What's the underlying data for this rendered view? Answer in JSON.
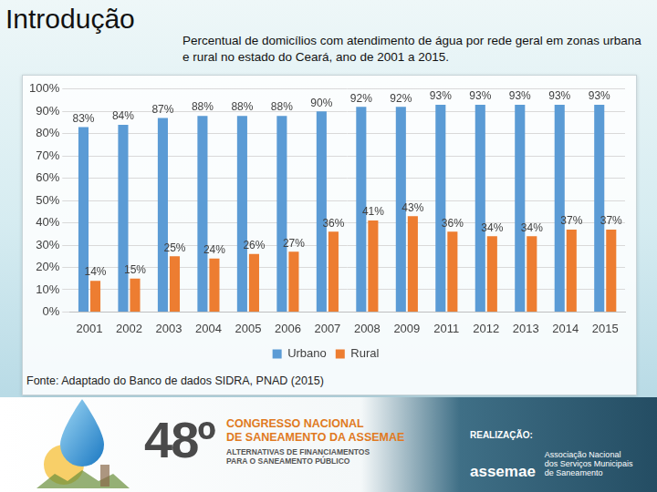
{
  "header": {
    "title": "Introdução"
  },
  "chart_data": {
    "type": "bar",
    "title": "Percentual de domicílios com atendimento de água por rede geral em zonas urbana e rural no estado do Ceará, ano de 2001 a 2015.",
    "source": "Fonte: Adaptado do Banco de dados SIDRA, PNAD (2015)",
    "categories": [
      "2001",
      "2002",
      "2003",
      "2004",
      "2005",
      "2006",
      "2007",
      "2008",
      "2009",
      "2011",
      "2012",
      "2013",
      "2014",
      "2015"
    ],
    "series": [
      {
        "name": "Urbano",
        "color": "#5b9bd5",
        "values": [
          83,
          84,
          87,
          88,
          88,
          88,
          90,
          92,
          92,
          93,
          93,
          93,
          93,
          93
        ],
        "value_labels": [
          "83%",
          "84%",
          "87%",
          "88%",
          "88%",
          "88%",
          "90%",
          "92%",
          "92%",
          "93%",
          "93%",
          "93%",
          "93%",
          "93%"
        ]
      },
      {
        "name": "Rural",
        "color": "#ed7d31",
        "values": [
          14,
          15,
          25,
          24,
          26,
          27,
          36,
          41,
          43,
          36,
          34,
          34,
          37,
          37
        ],
        "value_labels": [
          "14%",
          "15%",
          "25%",
          "24%",
          "26%",
          "27%",
          "36%",
          "41%",
          "43%",
          "36%",
          "34%",
          "34%",
          "37%",
          "37%"
        ]
      }
    ],
    "ylim": [
      0,
      100
    ],
    "yticks": [
      {
        "value": 0,
        "label": "0%"
      },
      {
        "value": 10,
        "label": "10%"
      },
      {
        "value": 20,
        "label": "20%"
      },
      {
        "value": 30,
        "label": "30%"
      },
      {
        "value": 40,
        "label": "40%"
      },
      {
        "value": 50,
        "label": "50%"
      },
      {
        "value": 60,
        "label": "60%"
      },
      {
        "value": 70,
        "label": "70%"
      },
      {
        "value": 80,
        "label": "80%"
      },
      {
        "value": 90,
        "label": "90%"
      },
      {
        "value": 100,
        "label": "100%"
      }
    ],
    "grid": true,
    "legend": "bottom",
    "data_labels": true
  },
  "footer": {
    "edition": "48º",
    "event": [
      "CONGRESSO NACIONAL",
      "DE SANEAMENTO DA ASSEMAE"
    ],
    "theme": [
      "ALTERNATIVAS DE FINANCIAMENTOS",
      "PARA O SANEAMENTO PÚBLICO"
    ],
    "organizer_label": "REALIZAÇÃO:",
    "organizer": "assemae",
    "organizer_name": [
      "Associação Nacional",
      "dos Serviços Municipais",
      "de Saneamento"
    ]
  }
}
